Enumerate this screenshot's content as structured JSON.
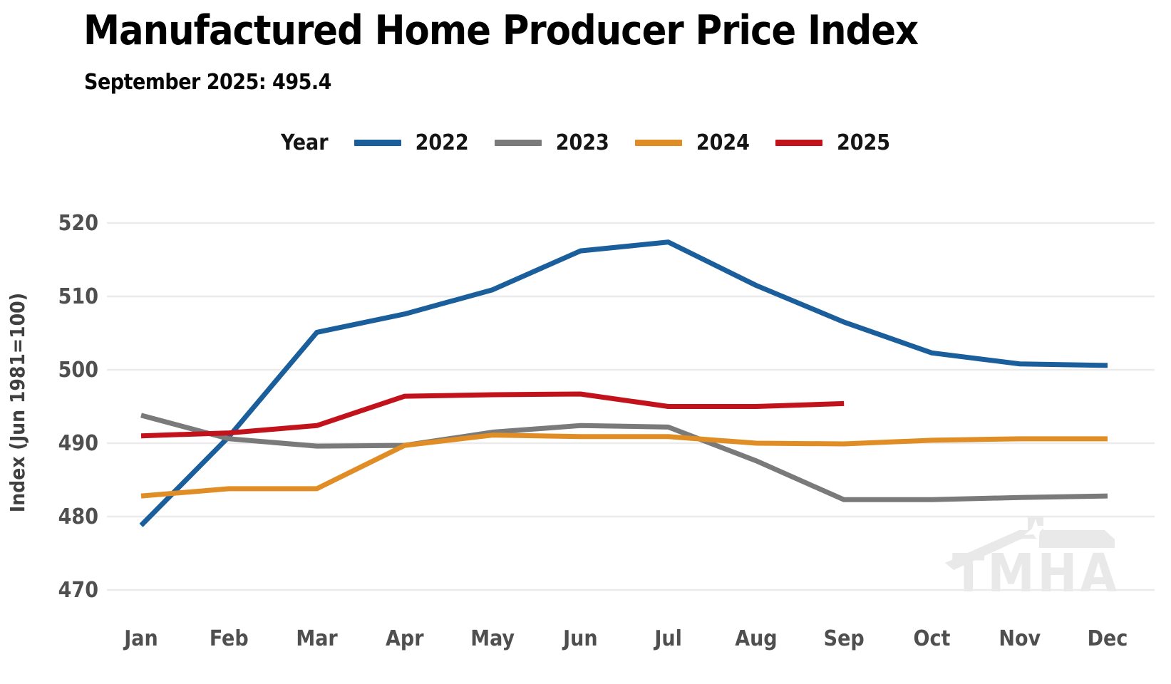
{
  "title": "Manufactured Home Producer Price Index",
  "subtitle": "September 2025: 495.4",
  "watermark_text": "TMHA",
  "legend": {
    "title": "Year"
  },
  "colors": {
    "blue_2022": "#1A5E9C",
    "gray_2023": "#7A7A7A",
    "orange_2024": "#E18D26",
    "red_2025": "#C2121B",
    "gridline": "#EBEBEB",
    "axis_text": "#4F4F4F",
    "watermark": "#E9E9E9"
  },
  "chart_data": {
    "type": "line",
    "title": "Manufactured Home Producer Price Index",
    "subtitle": "September 2025: 495.4",
    "categories": [
      "Jan",
      "Feb",
      "Mar",
      "Apr",
      "May",
      "Jun",
      "Jul",
      "Aug",
      "Sep",
      "Oct",
      "Nov",
      "Dec"
    ],
    "series": [
      {
        "name": "2022",
        "color": "#1A5E9C",
        "values": [
          478.8,
          490.9,
          505.1,
          507.6,
          510.9,
          516.2,
          517.4,
          511.5,
          506.5,
          502.3,
          500.8,
          500.6
        ]
      },
      {
        "name": "2023",
        "color": "#7A7A7A",
        "values": [
          493.8,
          490.6,
          489.6,
          489.7,
          491.5,
          492.4,
          492.2,
          487.6,
          482.3,
          482.3,
          482.6,
          482.8
        ]
      },
      {
        "name": "2024",
        "color": "#E18D26",
        "values": [
          482.8,
          483.8,
          483.8,
          489.7,
          491.1,
          490.9,
          490.9,
          490.0,
          489.9,
          490.4,
          490.6,
          490.6
        ]
      },
      {
        "name": "2025",
        "color": "#C2121B",
        "values": [
          491.0,
          491.4,
          492.4,
          496.4,
          496.6,
          496.7,
          495.0,
          495.0,
          495.4,
          null,
          null,
          null
        ]
      }
    ],
    "xlabel": "",
    "ylabel": "Index (Jun 1981=100)",
    "ylim": [
      470,
      520
    ],
    "yticks": [
      470,
      480,
      490,
      500,
      510,
      520
    ],
    "grid": true,
    "legend_position": "top-center"
  }
}
